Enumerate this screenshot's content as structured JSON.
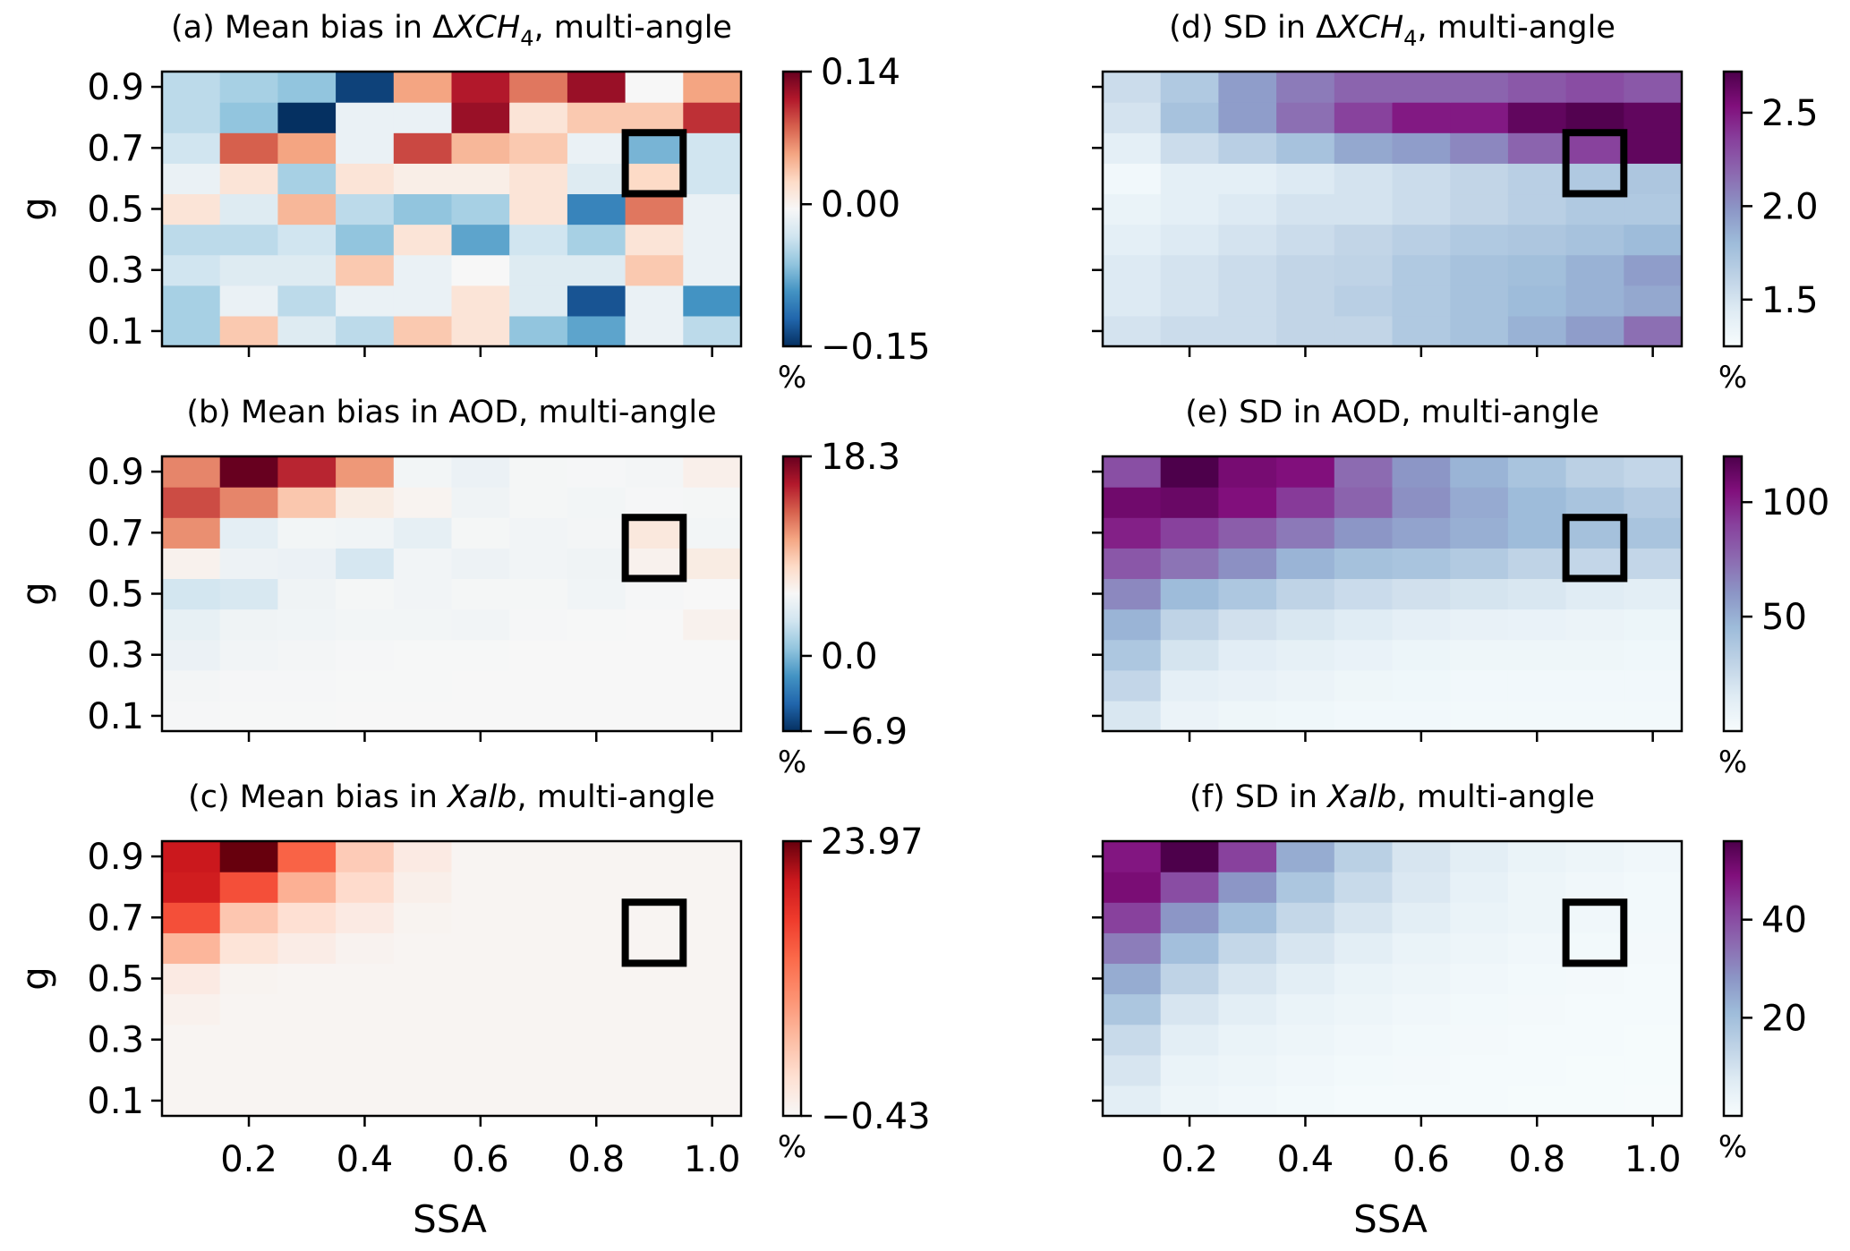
{
  "colors": {
    "frame": "#000000",
    "highlight_box": "#000000",
    "background": "#ffffff"
  },
  "chart_data": [
    {
      "type": "heatmap",
      "id": "a",
      "colormap": "RdBu_r",
      "title_pre": "(a) Mean bias in Δ",
      "title_italic": "XCH",
      "title_sub": "4",
      "title_post": ", multi-angle",
      "xlabel": "",
      "ylabel": "g",
      "x_ticks": [
        "0.2",
        "0.4",
        "0.6",
        "0.8",
        "1.0"
      ],
      "x_tick_labels_visible": false,
      "y_ticks": [
        "0.9",
        "0.7",
        "0.5",
        "0.3",
        "0.1"
      ],
      "xlim": [
        0.05,
        1.05
      ],
      "ylim": [
        0.05,
        0.95
      ],
      "colorbar_ticks": [
        "0.14",
        "0.00",
        "−0.15"
      ],
      "colorbar_unit": "%",
      "vmin": -0.15,
      "vmax": 0.14,
      "highlight_box": {
        "ssa": [
          0.85,
          0.95
        ],
        "g": [
          0.55,
          0.75
        ]
      },
      "grid_rows_g_0.1_to_0.9": [
        [
          -0.05,
          0.04,
          -0.02,
          -0.04,
          0.04,
          0.02,
          -0.06,
          -0.08,
          -0.01,
          -0.04
        ],
        [
          -0.05,
          -0.01,
          -0.04,
          -0.01,
          -0.01,
          0.02,
          -0.02,
          -0.13,
          -0.01,
          -0.09
        ],
        [
          -0.03,
          -0.02,
          -0.02,
          0.04,
          -0.01,
          0.0,
          -0.02,
          -0.02,
          0.04,
          -0.01
        ],
        [
          -0.04,
          -0.04,
          -0.03,
          -0.06,
          0.02,
          -0.08,
          -0.03,
          -0.05,
          0.02,
          -0.01
        ],
        [
          0.02,
          -0.02,
          0.05,
          -0.04,
          -0.06,
          -0.05,
          0.02,
          -0.1,
          0.08,
          -0.01
        ],
        [
          -0.01,
          0.02,
          -0.05,
          0.02,
          0.01,
          0.01,
          0.02,
          -0.02,
          0.03,
          -0.03
        ],
        [
          -0.03,
          0.09,
          0.06,
          -0.01,
          0.1,
          0.05,
          0.04,
          -0.01,
          -0.07,
          -0.03
        ],
        [
          -0.04,
          -0.06,
          -0.15,
          -0.01,
          -0.01,
          0.13,
          0.02,
          0.04,
          0.04,
          0.11
        ],
        [
          -0.04,
          -0.05,
          -0.06,
          -0.14,
          0.06,
          0.12,
          0.08,
          0.13,
          0.0,
          0.06
        ]
      ]
    },
    {
      "type": "heatmap",
      "id": "b",
      "colormap": "RdBu_r",
      "title_pre": "(b) Mean bias in AOD, multi-angle",
      "title_italic": "",
      "title_sub": "",
      "title_post": "",
      "xlabel": "",
      "ylabel": "g",
      "x_ticks": [
        "0.2",
        "0.4",
        "0.6",
        "0.8",
        "1.0"
      ],
      "x_tick_labels_visible": false,
      "y_ticks": [
        "0.9",
        "0.7",
        "0.5",
        "0.3",
        "0.1"
      ],
      "xlim": [
        0.05,
        1.05
      ],
      "ylim": [
        0.05,
        0.95
      ],
      "colorbar_ticks": [
        "18.3",
        "0.0",
        "−6.9"
      ],
      "colorbar_unit": "%",
      "vmin": -6.9,
      "vmax": 18.3,
      "highlight_box": {
        "ssa": [
          0.85,
          0.95
        ],
        "g": [
          0.55,
          0.75
        ]
      },
      "grid_rows_g_0.1_to_0.9": [
        [
          -0.2,
          -0.1,
          -0.1,
          0.0,
          0.0,
          0.0,
          0.0,
          0.0,
          0.0,
          0.0
        ],
        [
          -0.4,
          -0.2,
          -0.2,
          -0.1,
          -0.1,
          0.0,
          0.0,
          0.0,
          0.0,
          0.0
        ],
        [
          -1.2,
          -0.6,
          -0.4,
          -0.2,
          -0.1,
          -0.1,
          0.0,
          0.0,
          0.0,
          0.0
        ],
        [
          -1.5,
          -0.8,
          -0.7,
          -0.5,
          -0.5,
          -0.6,
          -0.2,
          -0.1,
          0.0,
          0.8
        ],
        [
          -3.5,
          -3.0,
          -0.8,
          -0.3,
          -0.6,
          -0.3,
          -0.3,
          -0.7,
          -0.2,
          0.0
        ],
        [
          0.8,
          -1.0,
          -1.2,
          -3.2,
          -0.6,
          -1.0,
          -0.6,
          -0.8,
          0.8,
          1.5
        ],
        [
          8.5,
          -1.8,
          -0.5,
          -0.7,
          -1.6,
          -0.3,
          -0.6,
          -0.4,
          2.0,
          -0.5
        ],
        [
          12.0,
          9.0,
          5.0,
          1.5,
          0.5,
          -0.8,
          -0.3,
          -0.5,
          -0.2,
          -0.3
        ],
        [
          9.0,
          18.3,
          14.0,
          8.0,
          -0.5,
          -1.2,
          -0.3,
          -0.2,
          -0.4,
          1.0
        ]
      ]
    },
    {
      "type": "heatmap",
      "id": "c",
      "colormap": "Reds",
      "title_pre": "(c) Mean bias in ",
      "title_italic": "Xalb",
      "title_sub": "",
      "title_post": ", multi-angle",
      "xlabel": "SSA",
      "ylabel": "g",
      "x_ticks": [
        "0.2",
        "0.4",
        "0.6",
        "0.8",
        "1.0"
      ],
      "x_tick_labels_visible": true,
      "y_ticks": [
        "0.9",
        "0.7",
        "0.5",
        "0.3",
        "0.1"
      ],
      "xlim": [
        0.05,
        1.05
      ],
      "ylim": [
        0.05,
        0.95
      ],
      "colorbar_ticks": [
        "23.97",
        "−0.43"
      ],
      "colorbar_unit": "%",
      "vmin": -0.43,
      "vmax": 23.97,
      "highlight_box": {
        "ssa": [
          0.85,
          0.95
        ],
        "g": [
          0.55,
          0.75
        ]
      },
      "grid_rows_g_0.1_to_0.9": [
        [
          0,
          0,
          0,
          0,
          0,
          0,
          0,
          0,
          0,
          0
        ],
        [
          0,
          0,
          0,
          0,
          0,
          0,
          0,
          0,
          0,
          0
        ],
        [
          0,
          0,
          0,
          0,
          0,
          0,
          0,
          0,
          0,
          0
        ],
        [
          0.5,
          0,
          0,
          0,
          0,
          0,
          0,
          0,
          0,
          0
        ],
        [
          1.5,
          0.2,
          0,
          0,
          0,
          0,
          0,
          0,
          0,
          0
        ],
        [
          7.0,
          2.5,
          1.2,
          0.3,
          0,
          0,
          0,
          0,
          0,
          0
        ],
        [
          15.5,
          5.5,
          3.0,
          1.5,
          0.2,
          0,
          0,
          0,
          0,
          0
        ],
        [
          20.0,
          15.5,
          7.5,
          3.5,
          0.8,
          0,
          0,
          0,
          0,
          0
        ],
        [
          20.5,
          23.97,
          14.0,
          5.0,
          1.5,
          0,
          0,
          0,
          0,
          0
        ]
      ]
    },
    {
      "type": "heatmap",
      "id": "d",
      "colormap": "BuPu",
      "title_pre": "(d) SD in Δ",
      "title_italic": "XCH",
      "title_sub": "4",
      "title_post": ", multi-angle",
      "xlabel": "",
      "ylabel": "",
      "x_ticks": [
        "0.2",
        "0.4",
        "0.6",
        "0.8",
        "1.0"
      ],
      "x_tick_labels_visible": false,
      "y_ticks": [
        "0.9",
        "0.7",
        "0.5",
        "0.3",
        "0.1"
      ],
      "y_tick_labels_visible": false,
      "xlim": [
        0.05,
        1.05
      ],
      "ylim": [
        0.05,
        0.95
      ],
      "colorbar_ticks": [
        "2.5",
        "2.0",
        "1.5"
      ],
      "colorbar_unit": "%",
      "vmin": 1.25,
      "vmax": 2.72,
      "highlight_box": {
        "ssa": [
          0.85,
          0.95
        ],
        "g": [
          0.55,
          0.75
        ]
      },
      "grid_rows_g_0.1_to_0.9": [
        [
          1.5,
          1.55,
          1.55,
          1.6,
          1.6,
          1.7,
          1.75,
          1.85,
          1.95,
          2.15
        ],
        [
          1.45,
          1.5,
          1.55,
          1.6,
          1.65,
          1.7,
          1.75,
          1.8,
          1.85,
          1.9
        ],
        [
          1.45,
          1.5,
          1.55,
          1.6,
          1.62,
          1.7,
          1.75,
          1.78,
          1.85,
          1.95
        ],
        [
          1.4,
          1.45,
          1.5,
          1.55,
          1.6,
          1.65,
          1.7,
          1.72,
          1.75,
          1.8
        ],
        [
          1.35,
          1.4,
          1.45,
          1.5,
          1.5,
          1.55,
          1.6,
          1.65,
          1.7,
          1.7
        ],
        [
          1.3,
          1.4,
          1.4,
          1.45,
          1.5,
          1.55,
          1.6,
          1.65,
          1.7,
          1.72
        ],
        [
          1.4,
          1.55,
          1.65,
          1.75,
          1.9,
          1.95,
          2.05,
          2.2,
          2.35,
          2.65
        ],
        [
          1.5,
          1.75,
          1.95,
          2.15,
          2.35,
          2.5,
          2.5,
          2.65,
          2.7,
          2.65
        ],
        [
          1.55,
          1.7,
          1.95,
          2.1,
          2.2,
          2.2,
          2.2,
          2.25,
          2.3,
          2.25
        ]
      ]
    },
    {
      "type": "heatmap",
      "id": "e",
      "colormap": "BuPu",
      "title_pre": "(e) SD in AOD, multi-angle",
      "title_italic": "",
      "title_sub": "",
      "title_post": "",
      "xlabel": "",
      "ylabel": "",
      "x_ticks": [
        "0.2",
        "0.4",
        "0.6",
        "0.8",
        "1.0"
      ],
      "x_tick_labels_visible": false,
      "y_ticks": [
        "0.9",
        "0.7",
        "0.5",
        "0.3",
        "0.1"
      ],
      "y_tick_labels_visible": false,
      "xlim": [
        0.05,
        1.05
      ],
      "ylim": [
        0.05,
        0.95
      ],
      "colorbar_ticks": [
        "100",
        "50"
      ],
      "colorbar_unit": "%",
      "vmin": 0,
      "vmax": 120,
      "highlight_box": {
        "ssa": [
          0.85,
          0.95
        ],
        "g": [
          0.55,
          0.75
        ]
      },
      "grid_rows_g_0.1_to_0.9": [
        [
          18,
          8,
          6,
          5,
          4,
          4,
          3,
          3,
          3,
          3
        ],
        [
          28,
          12,
          10,
          8,
          6,
          5,
          4,
          4,
          4,
          4
        ],
        [
          38,
          20,
          14,
          11,
          9,
          7,
          6,
          6,
          6,
          5
        ],
        [
          48,
          30,
          22,
          18,
          15,
          12,
          10,
          9,
          8,
          7
        ],
        [
          65,
          45,
          38,
          30,
          25,
          22,
          20,
          18,
          15,
          13
        ],
        [
          82,
          72,
          62,
          48,
          42,
          40,
          36,
          30,
          28,
          28
        ],
        [
          100,
          90,
          80,
          70,
          60,
          55,
          50,
          45,
          42,
          40
        ],
        [
          110,
          112,
          105,
          92,
          78,
          62,
          52,
          45,
          40,
          35
        ],
        [
          85,
          120,
          108,
          105,
          75,
          60,
          48,
          40,
          32,
          28
        ]
      ]
    },
    {
      "type": "heatmap",
      "id": "f",
      "colormap": "BuPu",
      "title_pre": "(f) SD in ",
      "title_italic": "Xalb",
      "title_sub": "",
      "title_post": ", multi-angle",
      "xlabel": "SSA",
      "ylabel": "",
      "x_ticks": [
        "0.2",
        "0.4",
        "0.6",
        "0.8",
        "1.0"
      ],
      "x_tick_labels_visible": true,
      "y_ticks": [
        "0.9",
        "0.7",
        "0.5",
        "0.3",
        "0.1"
      ],
      "y_tick_labels_visible": false,
      "xlim": [
        0.05,
        1.05
      ],
      "ylim": [
        0.05,
        0.95
      ],
      "colorbar_ticks": [
        "40",
        "20"
      ],
      "colorbar_unit": "%",
      "vmin": 0,
      "vmax": 56,
      "highlight_box": {
        "ssa": [
          0.85,
          0.95
        ],
        "g": [
          0.55,
          0.75
        ]
      },
      "grid_rows_g_0.1_to_0.9": [
        [
          6,
          3,
          2,
          1.5,
          1,
          1,
          0.8,
          0.6,
          0.5,
          0.4
        ],
        [
          9,
          4,
          3,
          2,
          1.5,
          1.2,
          1,
          0.8,
          0.6,
          0.5
        ],
        [
          12,
          6,
          4,
          3,
          2,
          1.5,
          1.2,
          1,
          0.8,
          0.6
        ],
        [
          18,
          9,
          6,
          4,
          3,
          2,
          1.5,
          1.2,
          1,
          0.8
        ],
        [
          24,
          14,
          9,
          6,
          4,
          3,
          2,
          1.5,
          1.2,
          1
        ],
        [
          32,
          20,
          13,
          9,
          6,
          4,
          3,
          2,
          1.5,
          1.2
        ],
        [
          42,
          28,
          20,
          13,
          9,
          6,
          4,
          3,
          2,
          1.5
        ],
        [
          50,
          40,
          28,
          18,
          12,
          8,
          5,
          3,
          2,
          1.5
        ],
        [
          48,
          56,
          42,
          24,
          15,
          9,
          6,
          4,
          3,
          2
        ]
      ]
    }
  ]
}
